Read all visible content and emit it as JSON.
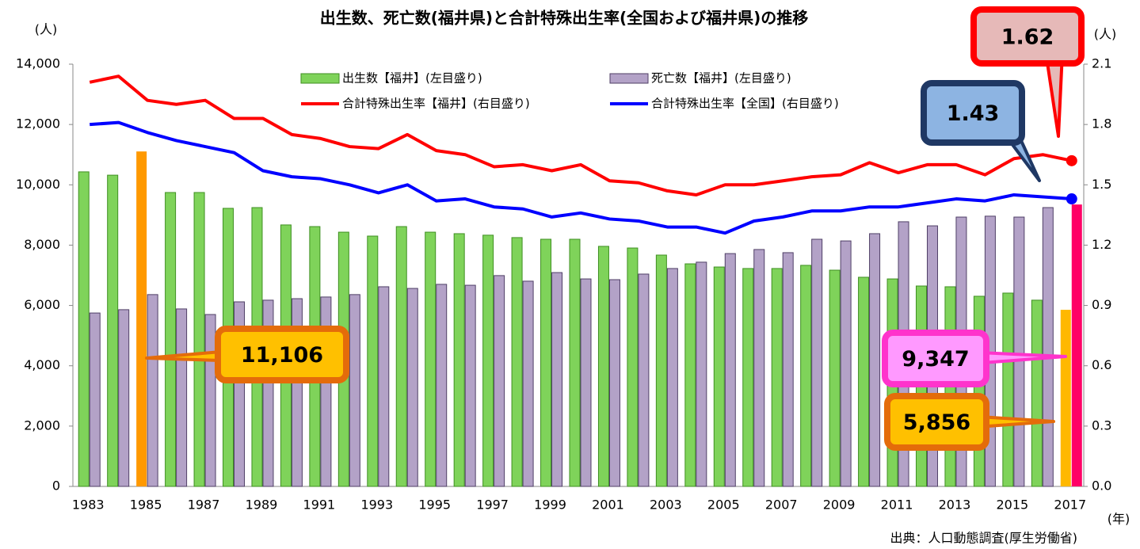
{
  "chart_data": {
    "type": "bar",
    "title": "出生数、死亡数(福井県)と合計特殊出生率(全国および福井県)の推移",
    "y_unit": "(人)",
    "y2_unit": "(人)",
    "x_unit": "(年)",
    "source": "出典：人口動態調査(厚生労働省)",
    "categories": [
      "1983",
      null,
      "1985",
      null,
      "1987",
      null,
      "1989",
      null,
      "1991",
      null,
      "1993",
      null,
      "1995",
      null,
      "1997",
      null,
      "1999",
      null,
      "2001",
      null,
      "2003",
      null,
      "2005",
      null,
      "2007",
      null,
      "2009",
      null,
      "2011",
      null,
      "2013",
      null,
      "2015",
      null,
      "2017"
    ],
    "ylim": [
      0,
      14000
    ],
    "yticks": [
      0,
      {
        "value": 2000,
        "label": "2,000"
      },
      {
        "value": 4000,
        "label": "4,000"
      },
      {
        "value": 6000,
        "label": "6,000"
      },
      {
        "value": 8000,
        "label": "8,000"
      },
      {
        "value": 10000,
        "label": "10,000"
      },
      {
        "value": 12000,
        "label": "12,000"
      },
      {
        "value": 14000,
        "label": "14,000"
      }
    ],
    "y2lim": [
      0,
      2.1
    ],
    "y2ticks": [
      {
        "value": 0,
        "label": "0.0"
      },
      0.3,
      0.6,
      0.9,
      1.2,
      1.5,
      1.8,
      2.1
    ],
    "series": [
      {
        "name": "出生数【福井】(左目盛り)",
        "type": "bar",
        "color": "#7fd35a",
        "border": "#3f8f22",
        "values": [
          10430,
          10320,
          11106,
          9745,
          9745,
          9220,
          9245,
          8670,
          8615,
          8430,
          8300,
          8615,
          8430,
          8380,
          8330,
          8250,
          8195,
          8195,
          7960,
          7905,
          7670,
          7380,
          7275,
          7225,
          7225,
          7330,
          7170,
          6935,
          6880,
          6645,
          6620,
          6305,
          6410,
          6175,
          5856
        ],
        "point_colors": [
          null,
          null,
          "#ff9900",
          null,
          null,
          null,
          null,
          null,
          null,
          null,
          null,
          null,
          null,
          null,
          null,
          null,
          null,
          null,
          null,
          null,
          null,
          null,
          null,
          null,
          null,
          null,
          null,
          null,
          null,
          null,
          null,
          null,
          null,
          null,
          "#ffb800"
        ],
        "value_labels": [
          null,
          null,
          "11,106",
          null,
          null,
          null,
          null,
          null,
          null,
          null,
          null,
          null,
          null,
          null,
          null,
          null,
          null,
          null,
          null,
          null,
          null,
          null,
          null,
          null,
          null,
          null,
          null,
          null,
          null,
          null,
          null,
          null,
          null,
          null,
          "5,856"
        ]
      },
      {
        "name": "死亡数【福井】(左目盛り)",
        "type": "bar",
        "color": "#b3a2c7",
        "border": "#4f3f66",
        "values": [
          5750,
          5860,
          6360,
          5885,
          5700,
          6120,
          6175,
          6225,
          6280,
          6360,
          6620,
          6565,
          6700,
          6670,
          6990,
          6805,
          7090,
          6880,
          6855,
          7040,
          7225,
          7435,
          7720,
          7855,
          7750,
          8195,
          8140,
          8380,
          8775,
          8640,
          8930,
          8960,
          8930,
          9245,
          9347
        ],
        "point_colors": [
          null,
          null,
          null,
          null,
          null,
          null,
          null,
          null,
          null,
          null,
          null,
          null,
          null,
          null,
          null,
          null,
          null,
          null,
          null,
          null,
          null,
          null,
          null,
          null,
          null,
          null,
          null,
          null,
          null,
          null,
          null,
          null,
          null,
          null,
          "#ff0066"
        ],
        "value_labels": [
          null,
          null,
          null,
          null,
          null,
          null,
          null,
          null,
          null,
          null,
          null,
          null,
          null,
          null,
          null,
          null,
          null,
          null,
          null,
          null,
          null,
          null,
          null,
          null,
          null,
          null,
          null,
          null,
          null,
          null,
          null,
          null,
          null,
          null,
          "9,347"
        ]
      },
      {
        "name": "合計特殊出生率【福井】(右目盛り)",
        "type": "line",
        "axis": "y2",
        "color": "#ff0000",
        "values": [
          2.01,
          2.04,
          1.92,
          1.9,
          1.92,
          1.83,
          1.83,
          1.75,
          1.73,
          1.69,
          1.68,
          1.75,
          1.67,
          1.65,
          1.59,
          1.6,
          1.57,
          1.6,
          1.52,
          1.51,
          1.47,
          1.45,
          1.5,
          1.5,
          1.52,
          1.54,
          1.55,
          1.61,
          1.56,
          1.6,
          1.6,
          1.55,
          1.63,
          1.65,
          1.62
        ],
        "value_labels": [
          null,
          null,
          null,
          null,
          null,
          null,
          null,
          null,
          null,
          null,
          null,
          null,
          null,
          null,
          null,
          null,
          null,
          null,
          null,
          null,
          null,
          null,
          null,
          null,
          null,
          null,
          null,
          null,
          null,
          null,
          null,
          null,
          null,
          null,
          "1.62"
        ]
      },
      {
        "name": "合計特殊出生率【全国】(右目盛り)",
        "type": "line",
        "axis": "y2",
        "color": "#0000ff",
        "values": [
          1.8,
          1.81,
          1.76,
          1.72,
          1.69,
          1.66,
          1.57,
          1.54,
          1.53,
          1.5,
          1.46,
          1.5,
          1.42,
          1.43,
          1.39,
          1.38,
          1.34,
          1.36,
          1.33,
          1.32,
          1.29,
          1.29,
          1.26,
          1.32,
          1.34,
          1.37,
          1.37,
          1.39,
          1.39,
          1.41,
          1.43,
          1.42,
          1.45,
          1.44,
          1.43
        ],
        "value_labels": [
          null,
          null,
          null,
          null,
          null,
          null,
          null,
          null,
          null,
          null,
          null,
          null,
          null,
          null,
          null,
          null,
          null,
          null,
          null,
          null,
          null,
          null,
          null,
          null,
          null,
          null,
          null,
          null,
          null,
          null,
          null,
          null,
          null,
          null,
          "1.43"
        ]
      }
    ]
  }
}
